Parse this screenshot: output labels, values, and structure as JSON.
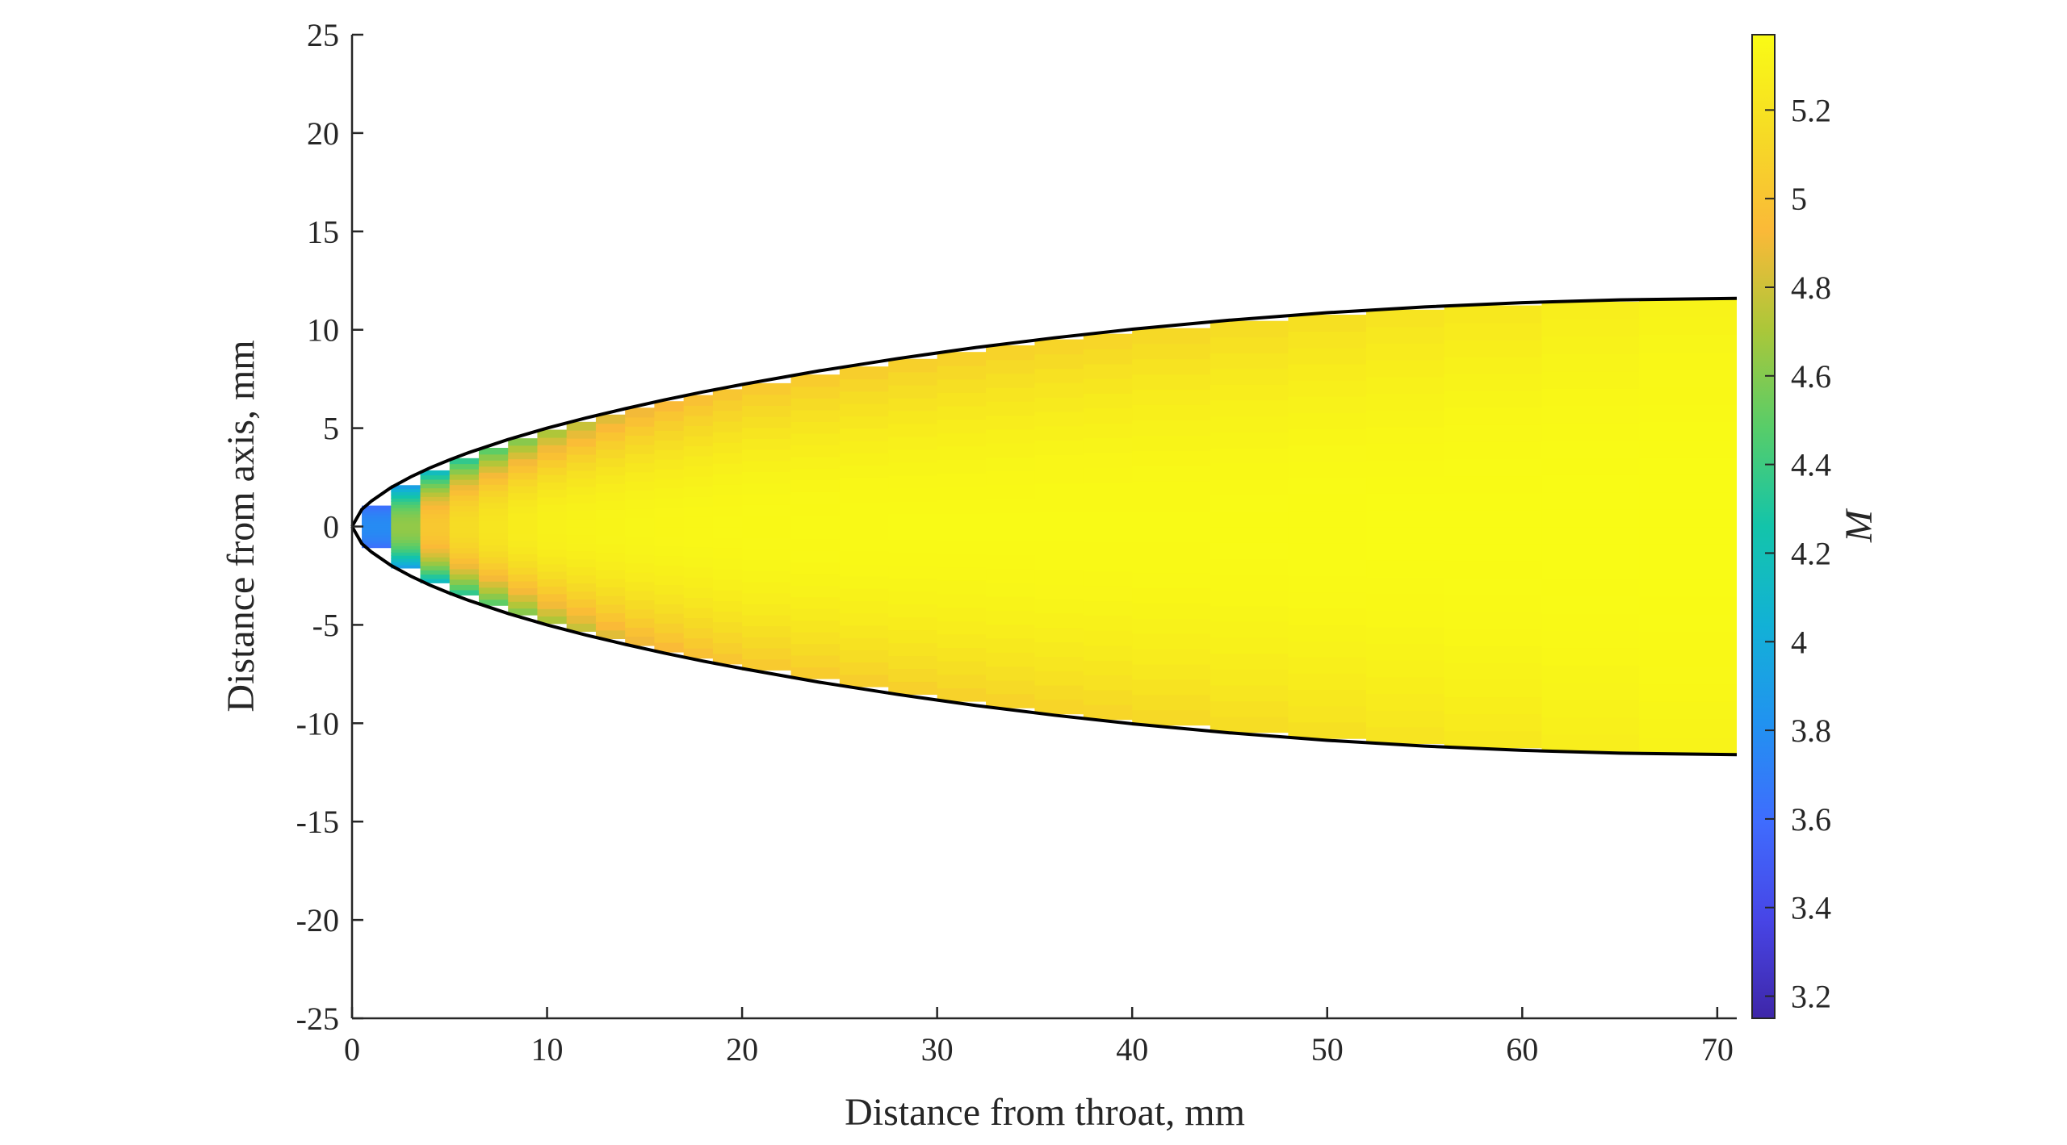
{
  "chart_data": {
    "type": "heatmap",
    "title": "",
    "xlabel": "Distance from throat, mm",
    "ylabel": "Distance from axis, mm",
    "xlim": [
      0,
      71
    ],
    "ylim": [
      -25,
      25
    ],
    "xticks": [
      0,
      10,
      20,
      30,
      40,
      50,
      60,
      70
    ],
    "xtick_labels": [
      "0",
      "10",
      "20",
      "30",
      "40",
      "50",
      "60",
      "70"
    ],
    "yticks": [
      25,
      20,
      15,
      10,
      5,
      0,
      -5,
      -10,
      -15,
      -20,
      -25
    ],
    "ytick_labels": [
      "25",
      "20",
      "15",
      "10",
      "5",
      "0",
      "-5",
      "-10",
      "-15",
      "-20",
      "-25"
    ],
    "grid": false,
    "colorbar": {
      "label": "M",
      "colormap": "parula",
      "range": [
        3.15,
        5.37
      ],
      "ticks": [
        3.2,
        3.4,
        3.6,
        3.8,
        4,
        4.2,
        4.4,
        4.6,
        4.8,
        5,
        5.2
      ],
      "tick_labels": [
        "3.2",
        "3.4",
        "3.6",
        "3.8",
        "4",
        "4.2",
        "4.4",
        "4.6",
        "4.8",
        "5",
        "5.2"
      ]
    },
    "nozzle_wall": {
      "x": [
        0,
        0.5,
        1,
        2,
        3,
        4,
        5,
        6,
        8,
        10,
        12,
        14,
        16,
        18,
        20,
        24,
        28,
        32,
        36,
        40,
        45,
        50,
        55,
        60,
        65,
        71
      ],
      "y": [
        0,
        0.87,
        1.3,
        1.98,
        2.52,
        2.98,
        3.39,
        3.76,
        4.42,
        5.0,
        5.52,
        5.99,
        6.43,
        6.84,
        7.22,
        7.92,
        8.54,
        9.1,
        9.59,
        10.03,
        10.49,
        10.87,
        11.16,
        11.38,
        11.52,
        11.6
      ]
    },
    "mach_field_profile": {
      "x": [
        0.5,
        1,
        2,
        3,
        4,
        5,
        6,
        8,
        10,
        14,
        20,
        28,
        40,
        55,
        71
      ],
      "M_axis": [
        3.3,
        3.6,
        4.3,
        4.75,
        5.0,
        5.1,
        5.17,
        5.25,
        5.3,
        5.33,
        5.35,
        5.36,
        5.36,
        5.37,
        5.37
      ],
      "M_wall": [
        3.45,
        3.55,
        3.75,
        3.9,
        4.05,
        4.2,
        4.32,
        4.5,
        4.65,
        4.85,
        5.0,
        5.05,
        5.1,
        5.2,
        5.33
      ]
    }
  }
}
